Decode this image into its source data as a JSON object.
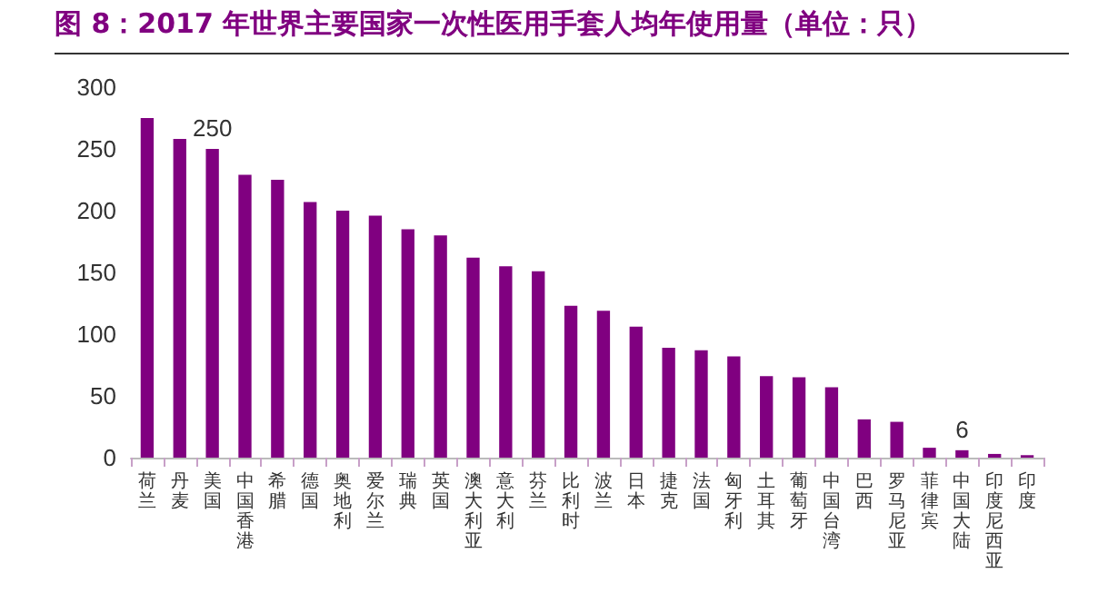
{
  "chart_data": {
    "type": "bar",
    "title": "图 8：2017 年世界主要国家一次性医用手套人均年使用量（单位：只）",
    "categories": [
      "荷兰",
      "丹麦",
      "美国",
      "中国香港",
      "希腊",
      "德国",
      "奥地利",
      "爱尔兰",
      "瑞典",
      "英国",
      "澳大利亚",
      "意大利",
      "芬兰",
      "比利时",
      "波兰",
      "日本",
      "捷克",
      "法国",
      "匈牙利",
      "土耳其",
      "葡萄牙",
      "中国台湾",
      "巴西",
      "罗马尼亚",
      "菲律宾",
      "中国大陆",
      "印度尼西亚",
      "印度"
    ],
    "values": [
      275,
      258,
      250,
      229,
      225,
      207,
      200,
      196,
      185,
      180,
      162,
      155,
      151,
      123,
      119,
      106,
      89,
      87,
      82,
      66,
      65,
      57,
      31,
      29,
      8,
      6,
      3,
      2
    ],
    "value_labels": [
      null,
      null,
      "250",
      null,
      null,
      null,
      null,
      null,
      null,
      null,
      null,
      null,
      null,
      null,
      null,
      null,
      null,
      null,
      null,
      null,
      null,
      null,
      null,
      null,
      null,
      "6",
      null,
      null
    ],
    "color": "#800080",
    "ylim": [
      0,
      300
    ],
    "yticks": [
      0,
      50,
      100,
      150,
      200,
      250,
      300
    ],
    "grid": false
  }
}
